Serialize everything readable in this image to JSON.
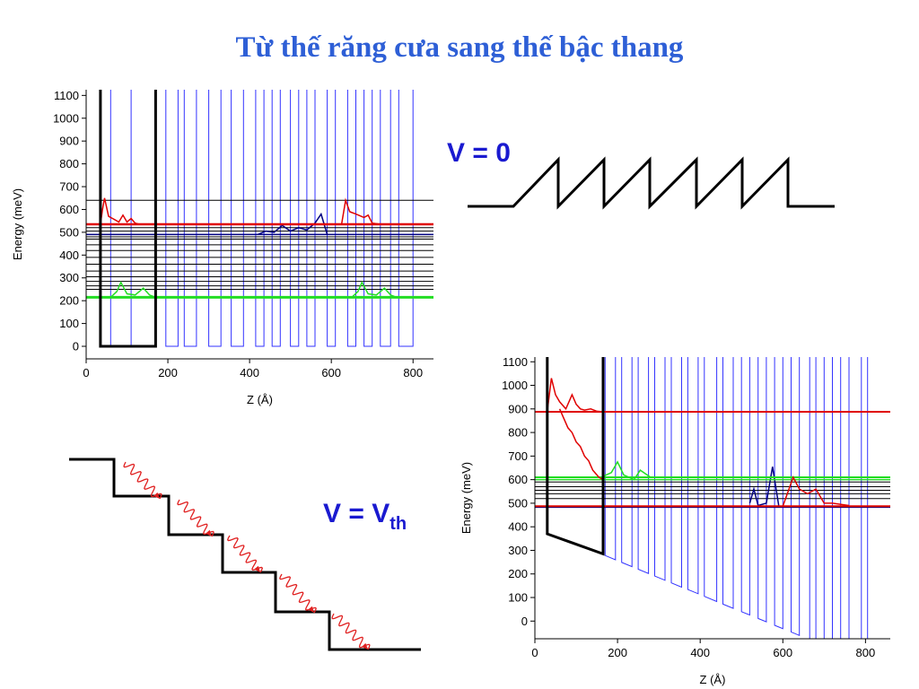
{
  "title": "Từ thế răng cưa sang thế bậc thang",
  "label_v0": "V = 0",
  "label_vth": {
    "main": "V = V",
    "sub": "th"
  },
  "chart_data": [
    {
      "type": "line",
      "ylabel": "Energy (meV)",
      "xlabel": "Z (Å)",
      "xlim": [
        0,
        850
      ],
      "ylim": [
        -55,
        1125
      ],
      "xticks": [
        0,
        200,
        400,
        600,
        800
      ],
      "yticks": [
        0,
        100,
        200,
        300,
        400,
        500,
        600,
        700,
        800,
        900,
        1000,
        1100
      ],
      "series": [
        {
          "color": "#3333ff",
          "width": 1,
          "x": [
            60,
            60,
            110,
            110,
            195,
            195,
            225,
            225,
            240,
            240,
            270,
            270,
            300,
            300,
            330,
            330,
            355,
            355,
            385,
            385,
            415,
            415,
            435,
            435,
            455,
            455,
            475,
            475,
            500,
            500,
            520,
            520,
            540,
            540,
            560,
            560,
            590,
            590,
            610,
            610,
            640,
            640,
            660,
            660,
            680,
            680,
            700,
            700,
            720,
            720,
            745,
            745,
            765,
            765,
            800,
            800
          ],
          "values": [
            1300,
            0,
            0,
            1300,
            1300,
            0,
            0,
            1300,
            1300,
            0,
            0,
            1300,
            1300,
            0,
            0,
            1300,
            1300,
            0,
            0,
            1300,
            1300,
            0,
            0,
            1300,
            1300,
            0,
            0,
            1300,
            1300,
            0,
            0,
            1300,
            1300,
            0,
            0,
            1300,
            1300,
            0,
            0,
            1300,
            1300,
            0,
            0,
            1300,
            1300,
            0,
            0,
            1300,
            1300,
            0,
            0,
            1300,
            1300,
            0,
            0,
            1300
          ]
        },
        {
          "color": "#000000",
          "width": 1,
          "x": [
            0,
            850
          ],
          "values": [
            640,
            640
          ]
        },
        {
          "color": "#000000",
          "width": 1,
          "x": [
            0,
            850
          ],
          "values": [
            250,
            250
          ]
        },
        {
          "color": "#000000",
          "width": 1,
          "x": [
            0,
            850
          ],
          "values": [
            265,
            265
          ]
        },
        {
          "color": "#000000",
          "width": 1,
          "x": [
            0,
            850
          ],
          "values": [
            285,
            285
          ]
        },
        {
          "color": "#000000",
          "width": 1,
          "x": [
            0,
            850
          ],
          "values": [
            305,
            305
          ]
        },
        {
          "color": "#000000",
          "width": 1,
          "x": [
            0,
            850
          ],
          "values": [
            330,
            330
          ]
        },
        {
          "color": "#000000",
          "width": 1,
          "x": [
            0,
            850
          ],
          "values": [
            360,
            360
          ]
        },
        {
          "color": "#000000",
          "width": 1,
          "x": [
            0,
            850
          ],
          "values": [
            390,
            390
          ]
        },
        {
          "color": "#000000",
          "width": 1,
          "x": [
            0,
            850
          ],
          "values": [
            420,
            420
          ]
        },
        {
          "color": "#000000",
          "width": 1,
          "x": [
            0,
            850
          ],
          "values": [
            445,
            445
          ]
        },
        {
          "color": "#000000",
          "width": 1,
          "x": [
            0,
            850
          ],
          "values": [
            470,
            470
          ]
        },
        {
          "color": "#000000",
          "width": 1,
          "x": [
            0,
            850
          ],
          "values": [
            480,
            480
          ]
        },
        {
          "color": "#000000",
          "width": 1,
          "x": [
            0,
            850
          ],
          "values": [
            505,
            505
          ]
        },
        {
          "color": "#000000",
          "width": 1,
          "x": [
            0,
            850
          ],
          "values": [
            520,
            520
          ]
        },
        {
          "color": "#000080",
          "width": 1.5,
          "x": [
            0,
            850
          ],
          "values": [
            490,
            490
          ]
        },
        {
          "color": "#000080",
          "width": 1.5,
          "x": [
            420,
            440,
            460,
            480,
            500,
            520,
            540,
            560,
            575,
            590
          ],
          "values": [
            490,
            505,
            500,
            530,
            505,
            520,
            510,
            540,
            580,
            490
          ]
        },
        {
          "color": "#22dd22",
          "width": 3,
          "x": [
            0,
            850
          ],
          "values": [
            215,
            215
          ]
        },
        {
          "color": "#22dd22",
          "width": 1.5,
          "x": [
            60,
            75,
            85,
            100,
            120,
            140,
            155,
            170
          ],
          "values": [
            215,
            240,
            280,
            230,
            225,
            255,
            225,
            215
          ]
        },
        {
          "color": "#22dd22",
          "width": 1.5,
          "x": [
            650,
            665,
            675,
            690,
            710,
            730,
            745,
            760
          ],
          "values": [
            215,
            240,
            280,
            230,
            225,
            255,
            225,
            215
          ]
        },
        {
          "color": "#e00000",
          "width": 2.5,
          "x": [
            0,
            850
          ],
          "values": [
            535,
            535
          ]
        },
        {
          "color": "#e00000",
          "width": 1.5,
          "x": [
            35,
            40,
            45,
            55,
            65,
            80,
            90,
            100,
            110,
            120,
            130
          ],
          "values": [
            535,
            600,
            650,
            570,
            560,
            545,
            575,
            545,
            560,
            540,
            535
          ]
        },
        {
          "color": "#e00000",
          "width": 1.5,
          "x": [
            625,
            635,
            645,
            660,
            680,
            690,
            700,
            720
          ],
          "values": [
            535,
            640,
            590,
            580,
            565,
            575,
            540,
            535
          ]
        },
        {
          "color": "#000000",
          "width": 3,
          "x": [
            35,
            35,
            170,
            170
          ],
          "values": [
            1200,
            0,
            0,
            1200
          ]
        }
      ]
    },
    {
      "type": "line",
      "ylabel": "Energy (meV)",
      "xlabel": "Z (Å)",
      "xlim": [
        0,
        860
      ],
      "ylim": [
        -75,
        1120
      ],
      "xticks": [
        0,
        200,
        400,
        600,
        800
      ],
      "yticks": [
        0,
        100,
        200,
        300,
        400,
        500,
        600,
        700,
        800,
        900,
        1000,
        1100
      ],
      "series": [
        {
          "color": "#3333ff",
          "width": 1,
          "x": [
            170,
            170,
            195,
            195,
            210,
            210,
            235,
            235,
            250,
            250,
            275,
            275,
            290,
            290,
            315,
            315,
            330,
            330,
            355,
            355,
            370,
            370,
            395,
            395,
            410,
            410,
            440,
            440,
            455,
            455,
            480,
            480,
            500,
            500,
            520,
            520,
            540,
            540,
            560,
            560,
            580,
            580,
            600,
            600,
            620,
            620,
            640,
            640,
            665,
            665,
            680,
            680,
            700,
            700,
            720,
            720,
            740,
            740,
            760,
            760,
            790,
            790,
            805,
            805
          ],
          "values": [
            1300,
            278,
            260,
            1300,
            1300,
            249,
            231,
            1300,
            1300,
            220,
            202,
            1300,
            1300,
            191,
            173,
            1300,
            1300,
            162,
            144,
            1300,
            1300,
            134,
            116,
            1300,
            1300,
            105,
            83,
            1300,
            1300,
            72,
            54,
            1300,
            1300,
            40,
            26,
            1300,
            1300,
            11,
            -3,
            1300,
            1300,
            -18,
            -32,
            1300,
            1300,
            -46,
            -61,
            1300,
            1300,
            -79,
            -90,
            1300,
            1300,
            -104,
            -118,
            1300,
            1300,
            -133,
            -147,
            1300,
            1300,
            -169,
            -180,
            1300
          ]
        },
        {
          "color": "#000000",
          "width": 1,
          "x": [
            0,
            860
          ],
          "values": [
            520,
            520
          ]
        },
        {
          "color": "#000000",
          "width": 1,
          "x": [
            0,
            860
          ],
          "values": [
            540,
            540
          ]
        },
        {
          "color": "#000000",
          "width": 1,
          "x": [
            0,
            860
          ],
          "values": [
            555,
            555
          ]
        },
        {
          "color": "#000000",
          "width": 1,
          "x": [
            0,
            860
          ],
          "values": [
            570,
            570
          ]
        },
        {
          "color": "#000000",
          "width": 1,
          "x": [
            0,
            860
          ],
          "values": [
            590,
            590
          ]
        },
        {
          "color": "#000080",
          "width": 1.5,
          "x": [
            0,
            860
          ],
          "values": [
            483,
            483
          ]
        },
        {
          "color": "#000080",
          "width": 1.5,
          "x": [
            520,
            530,
            540,
            560,
            575,
            590
          ],
          "values": [
            500,
            560,
            490,
            500,
            655,
            490
          ]
        },
        {
          "color": "#22dd22",
          "width": 2,
          "x": [
            0,
            860
          ],
          "values": [
            610,
            610
          ]
        },
        {
          "color": "#22dd22",
          "width": 1.5,
          "x": [
            0,
            860
          ],
          "values": [
            600,
            600
          ]
        },
        {
          "color": "#22dd22",
          "width": 1.5,
          "x": [
            160,
            185,
            200,
            215,
            240,
            255,
            280
          ],
          "values": [
            610,
            630,
            675,
            620,
            600,
            640,
            610
          ]
        },
        {
          "color": "#e00000",
          "width": 2,
          "x": [
            0,
            860
          ],
          "values": [
            888,
            888
          ]
        },
        {
          "color": "#e00000",
          "width": 2,
          "x": [
            0,
            860
          ],
          "values": [
            487,
            487
          ]
        },
        {
          "color": "#e00000",
          "width": 1.5,
          "x": [
            30,
            40,
            50,
            60,
            75,
            90,
            100,
            110,
            120,
            135,
            150,
            165
          ],
          "values": [
            890,
            1030,
            960,
            930,
            900,
            960,
            920,
            900,
            895,
            900,
            890,
            888
          ]
        },
        {
          "color": "#e00000",
          "width": 1.5,
          "x": [
            60,
            70,
            80,
            90,
            95,
            100,
            110,
            115,
            120,
            130,
            135,
            140,
            150,
            155,
            165
          ],
          "values": [
            900,
            860,
            820,
            800,
            780,
            760,
            740,
            720,
            700,
            680,
            660,
            640,
            620,
            610,
            600
          ]
        },
        {
          "color": "#e00000",
          "width": 1.5,
          "x": [
            600,
            625,
            640,
            660,
            680,
            700,
            720,
            760
          ],
          "values": [
            487,
            610,
            560,
            540,
            560,
            500,
            500,
            490
          ]
        },
        {
          "color": "#000000",
          "width": 3,
          "x": [
            30,
            30,
            165,
            165
          ],
          "values": [
            1200,
            370,
            285,
            1200
          ]
        }
      ]
    }
  ]
}
